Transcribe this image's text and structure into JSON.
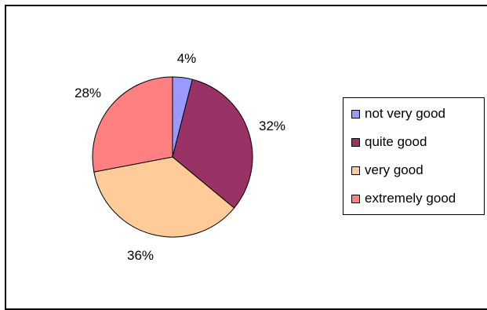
{
  "chart_data": {
    "type": "pie",
    "title": "",
    "categories": [
      "not very good",
      "quite good",
      "very good",
      "extremely good"
    ],
    "values": [
      4,
      32,
      36,
      28
    ],
    "labels": [
      "4%",
      "32%",
      "36%",
      "28%"
    ],
    "colors": [
      "#9999ff",
      "#993366",
      "#ffcc99",
      "#ff8080"
    ],
    "legend": "right"
  }
}
